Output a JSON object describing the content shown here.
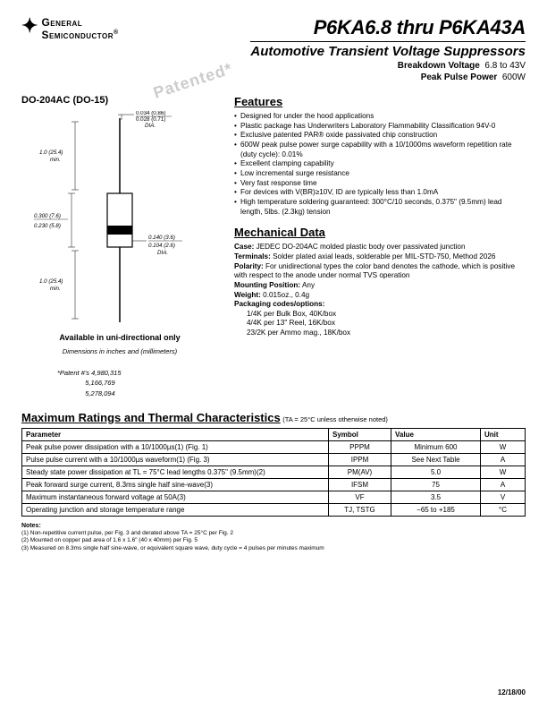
{
  "logo": {
    "line1": "General",
    "line2": "Semiconductor"
  },
  "header": {
    "part_range": "P6KA6.8 thru P6KA43A",
    "subtitle": "Automotive Transient Voltage Suppressors",
    "bv_label": "Breakdown Voltage",
    "bv_value": "6.8 to 43V",
    "pp_label": "Peak Pulse Power",
    "pp_value": "600W",
    "patented": "Patented*"
  },
  "package": {
    "name": "DO-204AC (DO-15)",
    "available": "Available in uni-directional only",
    "dims_note": "Dimensions in inches and (millimeters)",
    "patent_label": "*Patent #'s",
    "patents": [
      "4,980,315",
      "5,166,769",
      "5,278,094"
    ]
  },
  "drawing": {
    "dims": {
      "dia_top_a": "0.034 (0.86)",
      "dia_top_b": "0.028 (0.71)",
      "dia_top_c": "DIA.",
      "len_min_a": "1.0 (25.4)",
      "len_min_b": "min.",
      "body_l_a": "0.300 (7.6)",
      "body_l_b": "0.230 (5.8)",
      "body_d_a": "0.140 (3.6)",
      "body_d_b": "0.104 (2.6)",
      "body_d_c": "DIA."
    }
  },
  "features": {
    "heading": "Features",
    "items": [
      "Designed for under the hood applications",
      "Plastic package has Underwriters Laboratory Flammability Classification 94V-0",
      "Exclusive patented PAR® oxide passivated chip construction",
      "600W peak pulse power surge capability with a 10/1000ms waveform repetition rate (duty cycle): 0.01%",
      "Excellent clamping capability",
      "Low incremental surge resistance",
      "Very fast response time",
      "For devices with V(BR)≥10V, ID are typically less than 1.0mA",
      "High temperature soldering guaranteed: 300°C/10 seconds, 0.375\" (9.5mm) lead length, 5lbs. (2.3kg) tension"
    ]
  },
  "mechanical": {
    "heading": "Mechanical Data",
    "case": "JEDEC DO-204AC molded plastic body over passivated junction",
    "terminals": "Solder plated axial leads, solderable per MIL-STD-750, Method 2026",
    "polarity": "For unidirectional types the color band denotes the cathode, which is positive with respect to the anode under normal TVS operation",
    "mounting": "Any",
    "weight": "0.015oz., 0.4g",
    "packaging_label": "Packaging codes/options:",
    "packaging": [
      "1/4K per Bulk Box, 40K/box",
      "4/4K per 13\" Reel, 16K/box",
      "23/2K per Ammo mag., 18K/box"
    ]
  },
  "ratings": {
    "heading": "Maximum Ratings and Thermal Characteristics",
    "condition": "(TA = 25°C unless otherwise noted)",
    "columns": [
      "Parameter",
      "Symbol",
      "Value",
      "Unit"
    ],
    "rows": [
      [
        "Peak pulse power dissipation with a 10/1000µs(1) (Fig. 1)",
        "PPPM",
        "Minimum 600",
        "W"
      ],
      [
        "Pulse pulse current with a 10/1000µs waveform(1) (Fig. 3)",
        "IPPM",
        "See Next Table",
        "A"
      ],
      [
        "Steady state power dissipation at TL = 75°C lead lengths 0.375\" (9.5mm)(2)",
        "PM(AV)",
        "5.0",
        "W"
      ],
      [
        "Peak forward surge current, 8.3ms single half sine-wave(3)",
        "IFSM",
        "75",
        "A"
      ],
      [
        "Maximum instantaneous forward voltage at 50A(3)",
        "VF",
        "3.5",
        "V"
      ],
      [
        "Operating junction and storage temperature range",
        "TJ, TSTG",
        "−65 to +185",
        "°C"
      ]
    ]
  },
  "notes": {
    "heading": "Notes:",
    "items": [
      "(1) Non-repetitive current pulse, per Fig. 3 and derated above TA = 25°C per Fig. 2",
      "(2) Mounted on copper pad area of 1.6 x 1.6\" (40 x 40mm) per Fig. 5",
      "(3) Measured on 8.3ms single half sine-wave, or equivalent square wave, duty cycle = 4 pulses per minutes maximum"
    ]
  },
  "date": "12/18/00"
}
